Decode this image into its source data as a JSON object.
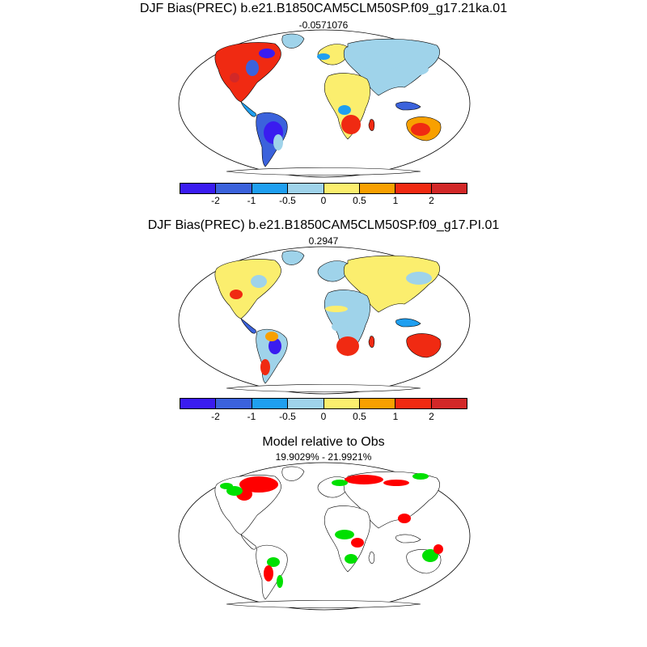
{
  "panels": [
    {
      "title": "DJF Bias(PREC) b.e21.B1850CAM5CLM50SP.f09_g17.21ka.01",
      "subtitle": "-0.0571076"
    },
    {
      "title": "DJF Bias(PREC) b.e21.B1850CAM5CLM50SP.f09_g17.PI.01",
      "subtitle": "0.2947"
    },
    {
      "title": "Model relative to Obs",
      "subtitle": "19.9029% - 21.9921%"
    }
  ],
  "colorbar": {
    "colors": [
      "#3a1cf0",
      "#3b62dc",
      "#1f9ff0",
      "#9fd3ea",
      "#fbee6e",
      "#f8a000",
      "#f02a12",
      "#d22828"
    ],
    "labels": [
      "-2",
      "-1",
      "-0.5",
      "0",
      "0.5",
      "1",
      "2"
    ]
  },
  "map": {
    "land_outline": "#000000",
    "panel3_colors": {
      "model_better": "#00e000",
      "model_worse": "#ff0000"
    }
  }
}
